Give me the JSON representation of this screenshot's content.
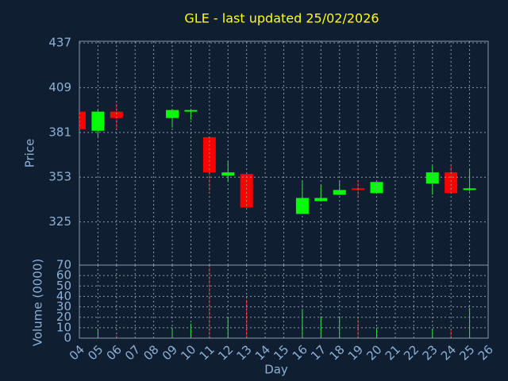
{
  "chart_data": {
    "type": "candlestick",
    "title": "GLE - last updated 25/02/2026",
    "ylabel": "Price",
    "volume_ylabel": "Volume (0000)",
    "xlabel": "Day",
    "categories": [
      "04",
      "05",
      "06",
      "07",
      "08",
      "09",
      "10",
      "11",
      "12",
      "13",
      "14",
      "15",
      "16",
      "17",
      "18",
      "19",
      "20",
      "21",
      "22",
      "23",
      "24",
      "25",
      "26"
    ],
    "open": [
      394,
      382,
      394,
      null,
      null,
      390,
      394,
      378,
      354,
      355,
      null,
      null,
      330,
      338,
      342,
      346,
      343,
      null,
      null,
      349,
      356,
      345,
      null
    ],
    "high": [
      394,
      395,
      399,
      null,
      null,
      395,
      395,
      378,
      363,
      355,
      null,
      null,
      351,
      348,
      351,
      351,
      350,
      null,
      null,
      360,
      360,
      358,
      null
    ],
    "low": [
      383,
      378,
      383,
      null,
      null,
      384,
      389,
      344,
      350,
      334,
      null,
      null,
      330,
      338,
      342,
      340,
      343,
      null,
      null,
      342,
      343,
      344,
      null
    ],
    "close": [
      383,
      394,
      390,
      null,
      null,
      395,
      395,
      356,
      356,
      334,
      null,
      null,
      340,
      340,
      345,
      345,
      350,
      null,
      null,
      356,
      343,
      346,
      null
    ],
    "volume": [
      0,
      9,
      3,
      null,
      null,
      10,
      14,
      68,
      20,
      37,
      null,
      null,
      27,
      21,
      21,
      20,
      10,
      null,
      null,
      9,
      9,
      29,
      null
    ],
    "up_color": "#00ff00",
    "down_color": "#ff0000",
    "ylim": [
      298,
      438
    ],
    "yticks": [
      325,
      353,
      381,
      409,
      437
    ],
    "volume_ylim": [
      0,
      70
    ],
    "volume_yticks": [
      0,
      10,
      20,
      30,
      40,
      50,
      60,
      70
    ],
    "grid": true
  }
}
